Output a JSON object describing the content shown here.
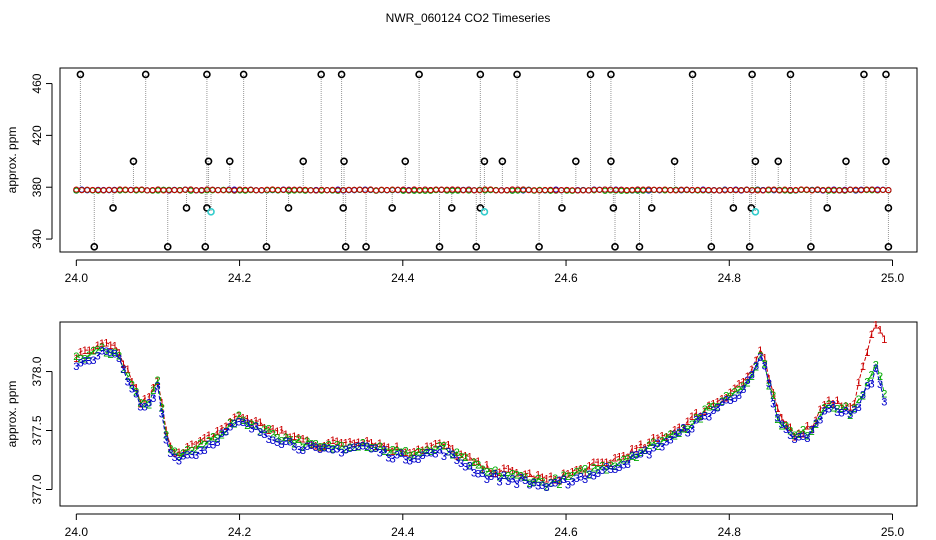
{
  "title": "NWR_060124  CO2 Timeseries",
  "chart_data": [
    {
      "type": "scatter",
      "panel": "top",
      "ylabel": "approx. ppm",
      "xlabel": "",
      "xlim": [
        23.98,
        25.03
      ],
      "ylim": [
        330,
        472
      ],
      "xticks": [
        24.0,
        24.2,
        24.4,
        24.6,
        24.8,
        25.0
      ],
      "xtick_labels": [
        "24.0",
        "24.2",
        "24.4",
        "24.6",
        "24.8",
        "25.0"
      ],
      "yticks": [
        340,
        380,
        420,
        460
      ],
      "ytick_labels": [
        "340",
        "380",
        "420",
        "460"
      ],
      "grid": false,
      "baseline_ppm": 377.8,
      "series": [
        {
          "color": "#0000cc",
          "marker": "circle",
          "x_range": [
            24.0,
            24.995
          ],
          "value": 377.8
        },
        {
          "color": "#00aa00",
          "marker": "circle",
          "x_range": [
            24.0,
            24.995
          ],
          "value": 377.6
        },
        {
          "color": "#cc0000",
          "marker": "circle",
          "x_range": [
            24.0,
            24.995
          ],
          "value": 377.9
        },
        {
          "color": "#000000",
          "marker": "circle",
          "x": [
            24.005,
            24.085,
            24.16,
            24.205,
            24.3,
            24.325,
            24.42,
            24.495,
            24.54,
            24.63,
            24.655,
            24.755,
            24.828,
            24.875,
            24.965,
            24.992
          ],
          "value": 467
        },
        {
          "color": "#000000",
          "marker": "circle",
          "x": [
            24.07,
            24.162,
            24.188,
            24.278,
            24.328,
            24.403,
            24.5,
            24.522,
            24.612,
            24.655,
            24.733,
            24.832,
            24.86,
            24.943,
            24.992
          ],
          "value": 400
        },
        {
          "color": "#000000",
          "marker": "circle",
          "x": [
            24.045,
            24.135,
            24.16,
            24.26,
            24.327,
            24.387,
            24.46,
            24.495,
            24.595,
            24.658,
            24.705,
            24.805,
            24.827,
            24.92,
            24.995
          ],
          "value": 364
        },
        {
          "color": "#000000",
          "marker": "circle",
          "x": [
            24.022,
            24.112,
            24.158,
            24.233,
            24.33,
            24.355,
            24.445,
            24.49,
            24.567,
            24.66,
            24.69,
            24.778,
            24.825,
            24.9,
            24.995
          ],
          "value": 334
        },
        {
          "color": "#33cccc",
          "marker": "circle",
          "x": [
            24.165,
            24.5,
            24.832
          ],
          "value": 361
        }
      ]
    },
    {
      "type": "line",
      "panel": "bottom",
      "ylabel": "approx. ppm",
      "xlabel": "",
      "xlim": [
        23.98,
        25.03
      ],
      "ylim": [
        376.86,
        378.42
      ],
      "xticks": [
        24.0,
        24.2,
        24.4,
        24.6,
        24.8,
        25.0
      ],
      "xtick_labels": [
        "24.0",
        "24.2",
        "24.4",
        "24.6",
        "24.8",
        "25.0"
      ],
      "yticks": [
        377.0,
        377.5,
        378.0
      ],
      "ytick_labels": [
        "377.0",
        "377.5",
        "378.0"
      ],
      "grid": false,
      "x": [
        24.0,
        24.02,
        24.035,
        24.05,
        24.065,
        24.08,
        24.09,
        24.1,
        24.11,
        24.12,
        24.15,
        24.2,
        24.25,
        24.3,
        24.35,
        24.4,
        24.45,
        24.5,
        24.55,
        24.58,
        24.6,
        24.65,
        24.7,
        24.75,
        24.78,
        24.8,
        24.82,
        24.84,
        24.86,
        24.88,
        24.9,
        24.92,
        24.95,
        24.97,
        24.98,
        24.99
      ],
      "base_values": [
        378.1,
        378.15,
        378.2,
        378.15,
        377.95,
        377.7,
        377.75,
        377.9,
        377.45,
        377.3,
        377.35,
        377.6,
        377.45,
        377.35,
        377.4,
        377.3,
        377.35,
        377.15,
        377.1,
        377.05,
        377.1,
        377.2,
        377.35,
        377.55,
        377.7,
        377.8,
        377.9,
        378.15,
        377.6,
        377.45,
        377.5,
        377.75,
        377.65,
        377.9,
        378.05,
        377.8
      ],
      "series": [
        {
          "label_char": "1",
          "color": "#cc0000"
        },
        {
          "label_char": "2",
          "color": "#00aa00"
        },
        {
          "label_char": "3",
          "color": "#0000cc"
        }
      ]
    }
  ]
}
